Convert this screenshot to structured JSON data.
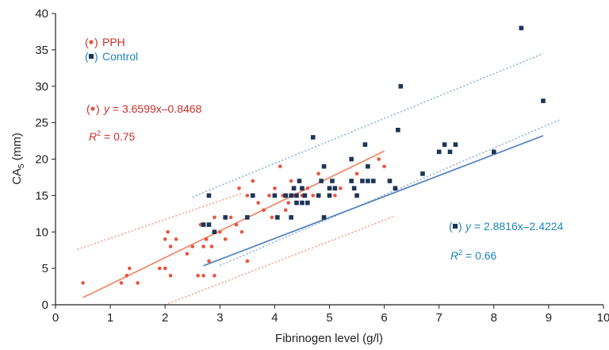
{
  "chart_data": {
    "type": "scatter",
    "xlabel": "Fibrinogen level (g/l)",
    "ylabel_main": "CA",
    "ylabel_sub": "5",
    "ylabel_unit": " (mm)",
    "xlim": [
      0,
      10
    ],
    "ylim": [
      0,
      40
    ],
    "x_ticks": [
      "0",
      "1",
      "2",
      "3",
      "4",
      "5",
      "6",
      "7",
      "8",
      "9",
      "10"
    ],
    "y_ticks": [
      "0",
      "5",
      "10",
      "15",
      "20",
      "25",
      "30",
      "35",
      "40"
    ],
    "grid": false,
    "legend_position": "top-left",
    "colors": {
      "pph": "#e8553f",
      "control": "#1d3557",
      "pph_text": "#c9302c",
      "control_text": "#1f86b8",
      "pph_line": "#f08c6e",
      "control_line": "#5b86c0"
    },
    "series": [
      {
        "name": "PPH",
        "marker": "circle",
        "fit": {
          "slope": 3.6599,
          "intercept": -0.8468,
          "x_range": [
            0.5,
            6.0
          ],
          "r2": 0.75
        },
        "ci_band": {
          "upper": [
            [
              0.4,
              7.6
            ],
            [
              3.4,
              15.3
            ]
          ],
          "lower": [
            [
              2.0,
              0.0
            ],
            [
              6.2,
              12.2
            ]
          ]
        },
        "points": [
          [
            0.5,
            3
          ],
          [
            1.2,
            3
          ],
          [
            1.3,
            4
          ],
          [
            1.35,
            5
          ],
          [
            1.5,
            3
          ],
          [
            1.9,
            5
          ],
          [
            2.0,
            5
          ],
          [
            2.0,
            9
          ],
          [
            2.05,
            10
          ],
          [
            2.1,
            8
          ],
          [
            2.1,
            4
          ],
          [
            2.2,
            9
          ],
          [
            2.4,
            7
          ],
          [
            2.5,
            8
          ],
          [
            2.6,
            4
          ],
          [
            2.65,
            11
          ],
          [
            2.7,
            8
          ],
          [
            2.7,
            4
          ],
          [
            2.75,
            9
          ],
          [
            2.8,
            6
          ],
          [
            2.85,
            8
          ],
          [
            2.9,
            12
          ],
          [
            2.9,
            4
          ],
          [
            3.0,
            10
          ],
          [
            3.1,
            9
          ],
          [
            3.2,
            12
          ],
          [
            3.3,
            11
          ],
          [
            3.35,
            16
          ],
          [
            3.4,
            10
          ],
          [
            3.5,
            15
          ],
          [
            3.5,
            6
          ],
          [
            3.6,
            17
          ],
          [
            3.7,
            14
          ],
          [
            3.8,
            13
          ],
          [
            3.9,
            15
          ],
          [
            3.95,
            12
          ],
          [
            4.0,
            16
          ],
          [
            4.1,
            19
          ],
          [
            4.15,
            15
          ],
          [
            4.2,
            13
          ],
          [
            4.25,
            14
          ],
          [
            4.3,
            17
          ],
          [
            4.35,
            15
          ],
          [
            4.5,
            15
          ],
          [
            4.6,
            16
          ],
          [
            4.7,
            15
          ],
          [
            4.8,
            18
          ],
          [
            5.0,
            16
          ],
          [
            5.1,
            15
          ],
          [
            5.2,
            16
          ],
          [
            5.5,
            18
          ],
          [
            5.9,
            20
          ],
          [
            6.0,
            19
          ]
        ]
      },
      {
        "name": "Control",
        "marker": "square",
        "fit": {
          "slope": 2.8816,
          "intercept": -2.4224,
          "x_range": [
            2.7,
            8.9
          ],
          "r2": 0.66
        },
        "ci_band": {
          "upper": [
            [
              2.5,
              14.8
            ],
            [
              8.9,
              34.5
            ]
          ],
          "lower": [
            [
              3.0,
              5.4
            ],
            [
              9.2,
              25.4
            ]
          ]
        },
        "points": [
          [
            2.7,
            11
          ],
          [
            2.8,
            15
          ],
          [
            2.8,
            11
          ],
          [
            2.9,
            10
          ],
          [
            3.1,
            12
          ],
          [
            3.5,
            12
          ],
          [
            3.6,
            15
          ],
          [
            4.0,
            15
          ],
          [
            4.05,
            12
          ],
          [
            4.2,
            15
          ],
          [
            4.3,
            15
          ],
          [
            4.3,
            12
          ],
          [
            4.35,
            16
          ],
          [
            4.4,
            15
          ],
          [
            4.4,
            14
          ],
          [
            4.45,
            17
          ],
          [
            4.5,
            14
          ],
          [
            4.5,
            16
          ],
          [
            4.55,
            15
          ],
          [
            4.6,
            14
          ],
          [
            4.7,
            23
          ],
          [
            4.8,
            15
          ],
          [
            4.85,
            17
          ],
          [
            4.9,
            19
          ],
          [
            4.9,
            12
          ],
          [
            5.0,
            16
          ],
          [
            5.0,
            15
          ],
          [
            5.05,
            17
          ],
          [
            5.1,
            16
          ],
          [
            5.4,
            20
          ],
          [
            5.4,
            17
          ],
          [
            5.45,
            16
          ],
          [
            5.5,
            15
          ],
          [
            5.6,
            17
          ],
          [
            5.65,
            22
          ],
          [
            5.7,
            19
          ],
          [
            5.7,
            17
          ],
          [
            5.8,
            17
          ],
          [
            6.1,
            17
          ],
          [
            6.2,
            16
          ],
          [
            6.25,
            24
          ],
          [
            6.3,
            30
          ],
          [
            6.7,
            18
          ],
          [
            7.0,
            21
          ],
          [
            7.1,
            22
          ],
          [
            7.2,
            21
          ],
          [
            7.3,
            22
          ],
          [
            8.0,
            21
          ],
          [
            8.5,
            38
          ],
          [
            8.9,
            28
          ]
        ]
      }
    ],
    "legend": [
      {
        "label": "PPH",
        "marker": "circle"
      },
      {
        "label": "Control",
        "marker": "square"
      }
    ],
    "annotations": [
      {
        "id": "pph_eq",
        "series": "PPH",
        "marker": "circle",
        "prefix": "y",
        "text": " = 3.6599x–0.8468"
      },
      {
        "id": "pph_r2",
        "series": "PPH",
        "prefix": "R",
        "sup": "2",
        "text": " = 0.75"
      },
      {
        "id": "ctrl_eq",
        "series": "Control",
        "marker": "square",
        "prefix": "y",
        "text": " = 2.8816x–2.4224"
      },
      {
        "id": "ctrl_r2",
        "series": "Control",
        "prefix": "R",
        "sup": "2",
        "text": " = 0.66"
      }
    ]
  }
}
